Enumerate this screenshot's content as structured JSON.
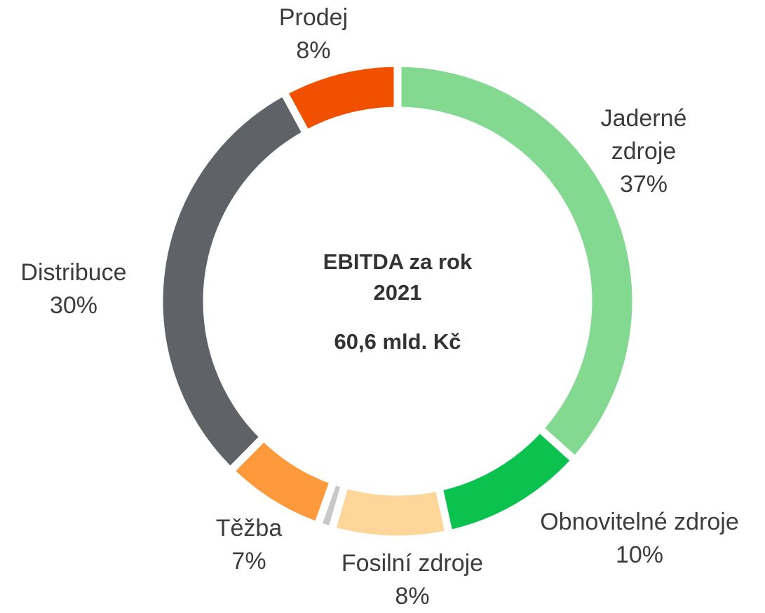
{
  "chart_data": {
    "type": "donut",
    "title": "EBITDA za rok 2021",
    "subtitle": "60,6 mld. Kč",
    "categories": [
      "Jaderné zdroje",
      "Obnovitelné zdroje",
      "Fosilní zdroje",
      null,
      "Těžba",
      "Distribuce",
      "Prodej"
    ],
    "values": [
      37,
      10,
      8,
      1,
      7,
      30,
      8
    ],
    "value_labels": [
      "37%",
      "10%",
      "8%",
      null,
      "7%",
      "30%",
      "8%"
    ],
    "colors": [
      "#82d98f",
      "#0bc24f",
      "#ffd699",
      "#c8c8c8",
      "#ff9a3c",
      "#5f6368",
      "#f05000"
    ]
  }
}
